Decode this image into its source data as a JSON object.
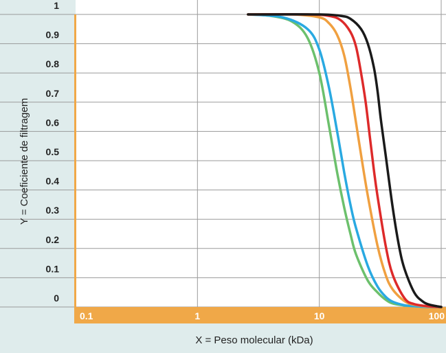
{
  "chart_data": {
    "type": "line",
    "xlabel": "X = Peso molecular (kDa)",
    "ylabel": "Y = Coeficiente de filtragem",
    "x_scale": "log",
    "xlim": [
      0.1,
      100
    ],
    "ylim": [
      0,
      1
    ],
    "x_ticks": [
      "0.1",
      "1",
      "10",
      "100"
    ],
    "y_ticks": [
      "0",
      "0.1",
      "0.2",
      "0.3",
      "0.4",
      "0.5",
      "0.6",
      "0.7",
      "0.8",
      "0.9",
      "1"
    ],
    "grid": true,
    "legend": "none",
    "colors": {
      "axis_band": "#f0a848",
      "panel": "#dfecec",
      "grid": "#9a9a9a"
    },
    "series": [
      {
        "color": "#6cc06c",
        "x": [
          2.6,
          4,
          6,
          8,
          10,
          12,
          14,
          16,
          18,
          20,
          25,
          30,
          35,
          40,
          50,
          60,
          80,
          100
        ],
        "y": [
          1.0,
          0.995,
          0.975,
          0.92,
          0.8,
          0.62,
          0.46,
          0.34,
          0.25,
          0.18,
          0.09,
          0.05,
          0.025,
          0.012,
          0.005,
          0.003,
          0.0,
          0.0
        ]
      },
      {
        "color": "#29a9e1",
        "x": [
          2.6,
          5,
          8,
          10,
          12,
          14,
          16,
          18,
          20,
          25,
          30,
          35,
          40,
          50,
          60,
          80,
          100
        ],
        "y": [
          1.0,
          0.99,
          0.95,
          0.88,
          0.75,
          0.6,
          0.46,
          0.35,
          0.27,
          0.14,
          0.07,
          0.035,
          0.018,
          0.006,
          0.003,
          0.0,
          0.0
        ]
      },
      {
        "color": "#f0a040",
        "x": [
          2.6,
          6,
          10,
          12,
          14,
          16,
          18,
          20,
          22,
          25,
          30,
          35,
          40,
          50,
          60,
          80,
          100
        ],
        "y": [
          1.0,
          1.0,
          0.99,
          0.97,
          0.93,
          0.86,
          0.75,
          0.63,
          0.52,
          0.38,
          0.21,
          0.11,
          0.06,
          0.02,
          0.008,
          0.001,
          0.0
        ]
      },
      {
        "color": "#dd2a2a",
        "x": [
          2.6,
          8,
          12,
          15,
          18,
          20,
          22,
          24,
          26,
          28,
          30,
          35,
          40,
          50,
          60,
          80,
          100
        ],
        "y": [
          1.0,
          1.0,
          0.995,
          0.98,
          0.94,
          0.89,
          0.8,
          0.7,
          0.58,
          0.47,
          0.38,
          0.21,
          0.11,
          0.03,
          0.01,
          0.002,
          0.0
        ]
      },
      {
        "color": "#1a1a1a",
        "x": [
          2.6,
          10,
          15,
          18,
          22,
          25,
          28,
          30,
          32,
          35,
          40,
          45,
          50,
          60,
          70,
          80,
          100
        ],
        "y": [
          1.0,
          1.0,
          0.995,
          0.985,
          0.95,
          0.9,
          0.82,
          0.74,
          0.64,
          0.52,
          0.34,
          0.21,
          0.13,
          0.05,
          0.02,
          0.008,
          0.0
        ]
      }
    ]
  }
}
